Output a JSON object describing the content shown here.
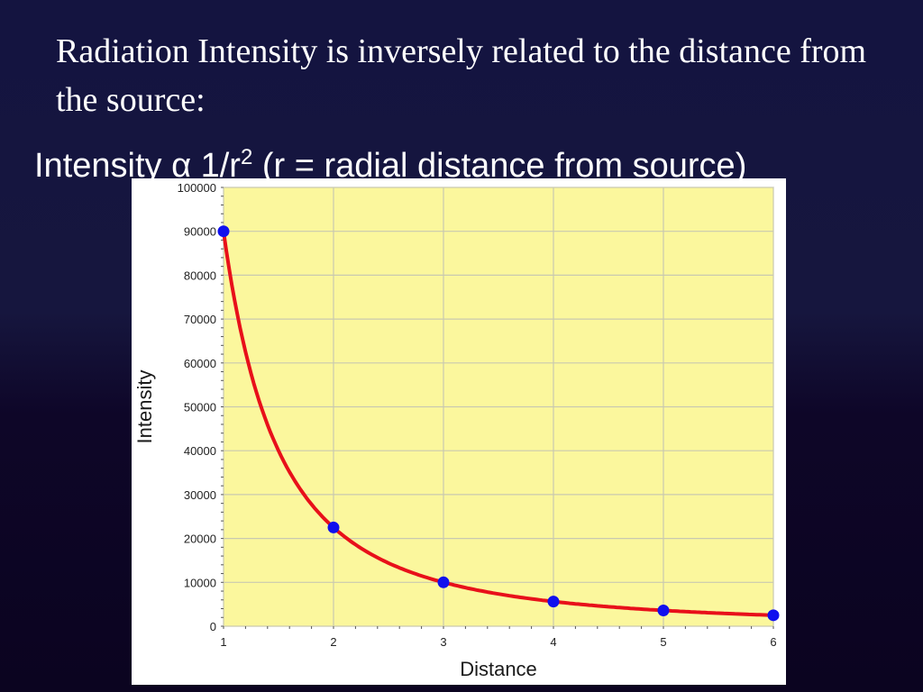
{
  "slide": {
    "heading": "Radiation Intensity is inversely related to the distance from the source:",
    "formula": {
      "prefix": "Intensity α 1/r",
      "exponent": "2",
      "note": "(r = radial distance from source)"
    }
  },
  "chart_data": {
    "type": "line",
    "title": "",
    "xlabel": "Distance",
    "ylabel": "Intensity",
    "xlim": [
      1,
      6
    ],
    "ylim": [
      0,
      100000
    ],
    "x_ticks": [
      1,
      2,
      3,
      4,
      5,
      6
    ],
    "y_ticks": [
      0,
      10000,
      20000,
      30000,
      40000,
      50000,
      60000,
      70000,
      80000,
      90000,
      100000
    ],
    "grid": true,
    "legend": "none",
    "series": [
      {
        "points": [
          {
            "x": 1,
            "y": 90000
          },
          {
            "x": 2,
            "y": 22500
          },
          {
            "x": 3,
            "y": 10000
          },
          {
            "x": 4,
            "y": 5625
          },
          {
            "x": 5,
            "y": 3600
          },
          {
            "x": 6,
            "y": 2500
          }
        ],
        "line_color": "#e8101a",
        "marker_color": "#1010ee"
      }
    ],
    "plot_background": "#fbf79d",
    "grid_color": "#c9c9b0"
  }
}
